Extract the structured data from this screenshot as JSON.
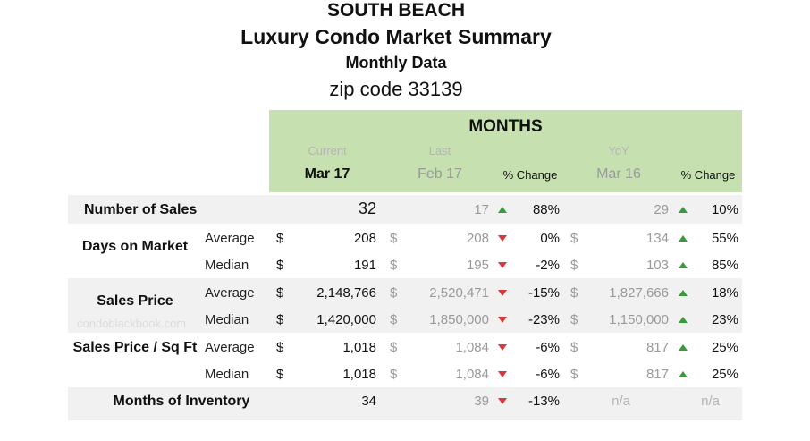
{
  "title": {
    "line1": "SOUTH BEACH",
    "line2": "Luxury Condo Market Summary",
    "line3": "Monthly Data",
    "line4": "zip code 33139"
  },
  "header": {
    "months": "MONTHS",
    "current": "Current",
    "last": "Last",
    "yoy": "YoY",
    "cur_month": "Mar 17",
    "last_month": "Feb 17",
    "pct1": "% Change",
    "yoy_month": "Mar 16",
    "pct2": "% Change"
  },
  "watermark": "condoblackbook.com",
  "rows": [
    {
      "label": "Number of Sales",
      "sub": "",
      "cur": "32",
      "last": "17",
      "d1": "up",
      "p1": "88%",
      "yoy": "29",
      "d2": "up",
      "p2": "10%",
      "dollar": false
    },
    {
      "label": "Days on Market",
      "sub": "Average",
      "cur": "208",
      "last": "208",
      "d1": "down",
      "p1": "0%",
      "yoy": "134",
      "d2": "up",
      "p2": "55%",
      "dollar": true
    },
    {
      "label": "",
      "sub": "Median",
      "cur": "191",
      "last": "195",
      "d1": "down",
      "p1": "-2%",
      "yoy": "103",
      "d2": "up",
      "p2": "85%",
      "dollar": true
    },
    {
      "label": "Sales Price",
      "sub": "Average",
      "cur": "2,148,766",
      "last": "2,520,471",
      "d1": "down",
      "p1": "-15%",
      "yoy": "1,827,666",
      "d2": "up",
      "p2": "18%",
      "dollar": true
    },
    {
      "label": "",
      "sub": "Median",
      "cur": "1,420,000",
      "last": "1,850,000",
      "d1": "down",
      "p1": "-23%",
      "yoy": "1,150,000",
      "d2": "up",
      "p2": "23%",
      "dollar": true
    },
    {
      "label": "Sales Price / Sq Ft",
      "sub": "Average",
      "cur": "1,018",
      "last": "1,084",
      "d1": "down",
      "p1": "-6%",
      "yoy": "817",
      "d2": "up",
      "p2": "25%",
      "dollar": true
    },
    {
      "label": "",
      "sub": "Median",
      "cur": "1,018",
      "last": "1,084",
      "d1": "down",
      "p1": "-6%",
      "yoy": "817",
      "d2": "up",
      "p2": "25%",
      "dollar": true
    },
    {
      "label": "Months of Inventory",
      "sub": "",
      "cur": "34",
      "last": "39",
      "d1": "down",
      "p1": "-13%",
      "yoy": "n/a",
      "d2": "",
      "p2": "n/a",
      "dollar": false
    }
  ],
  "currency": "$"
}
